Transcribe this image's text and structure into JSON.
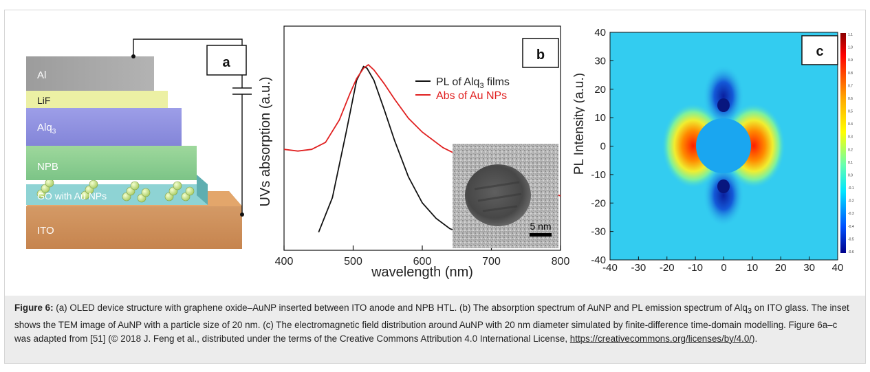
{
  "panel_a": {
    "tag": "a",
    "layers": [
      "Al",
      "LiF",
      "Alq",
      "NPB",
      "GO with Au NPs",
      "ITO"
    ],
    "alq_subscript": "3"
  },
  "panel_b": {
    "tag": "b",
    "inset_scale": "5 nm",
    "right_axis_label": "PL Intensity (a.u.)"
  },
  "panel_c": {
    "tag": "c",
    "colorbar_ticks": [
      "1.1",
      "1.0",
      "0.9",
      "0.8",
      "0.7",
      "0.6",
      "0.5",
      "0.4",
      "0.3",
      "0.2",
      "0.1",
      "0.0",
      "-0.1",
      "-0.2",
      "-0.3",
      "-0.4",
      "-0.5",
      "-0.6"
    ]
  },
  "chart_data": [
    {
      "type": "line",
      "xlabel": "wavelength (nm)",
      "ylabel": "UVs absorption (a.u.)",
      "xlim": [
        400,
        800
      ],
      "x_ticks": [
        "400",
        "500",
        "600",
        "700",
        "800"
      ],
      "legend_position": "top-right",
      "series": [
        {
          "name": "PL of Alq",
          "name_subscript": "3",
          "name_suffix": " films",
          "color": "#111111",
          "x": [
            450,
            470,
            490,
            505,
            515,
            520,
            530,
            545,
            560,
            580,
            600,
            620,
            640,
            660
          ],
          "y": [
            0.04,
            0.24,
            0.62,
            0.92,
            1.0,
            0.99,
            0.92,
            0.75,
            0.57,
            0.36,
            0.21,
            0.12,
            0.06,
            0.03
          ]
        },
        {
          "name": "Abs of Au NPs",
          "color": "#e02020",
          "x": [
            400,
            420,
            440,
            460,
            480,
            495,
            505,
            515,
            522,
            530,
            545,
            560,
            580,
            600,
            630,
            660,
            700,
            750,
            800
          ],
          "y": [
            0.52,
            0.51,
            0.52,
            0.56,
            0.69,
            0.84,
            0.93,
            0.99,
            1.01,
            0.98,
            0.9,
            0.81,
            0.7,
            0.62,
            0.53,
            0.47,
            0.4,
            0.32,
            0.25
          ]
        }
      ]
    },
    {
      "type": "heatmap",
      "xlim": [
        -40,
        40
      ],
      "ylim": [
        -40,
        40
      ],
      "x_ticks": [
        "-40",
        "-30",
        "-20",
        "-10",
        "0",
        "10",
        "20",
        "30",
        "40"
      ],
      "y_ticks": [
        "40",
        "30",
        "20",
        "10",
        "0",
        "-10",
        "-20",
        "-30",
        "-40"
      ],
      "colorbar_range": [
        -0.6,
        1.1
      ]
    }
  ],
  "caption": {
    "label": "Figure 6:",
    "text1": " (a) OLED device structure with graphene oxide–AuNP inserted between ITO anode and NPB HTL. (b) The absorption spectrum of AuNP and PL emission spectrum of Alq",
    "sub": "3",
    "text2": " on ITO glass. The inset shows the TEM image of AuNP with a particle size of 20 nm. (c) The electromagnetic field distribution around AuNP with 20 nm diameter simulated by finite-difference time-domain modelling. Figure 6a–c was adapted from [51] (© 2018 J. Feng et al., distributed under the terms of the Creative Commons Attribution 4.0 International License, ",
    "link": "https://creativecommons.org/licenses/by/4.0/",
    "text3": ")."
  }
}
